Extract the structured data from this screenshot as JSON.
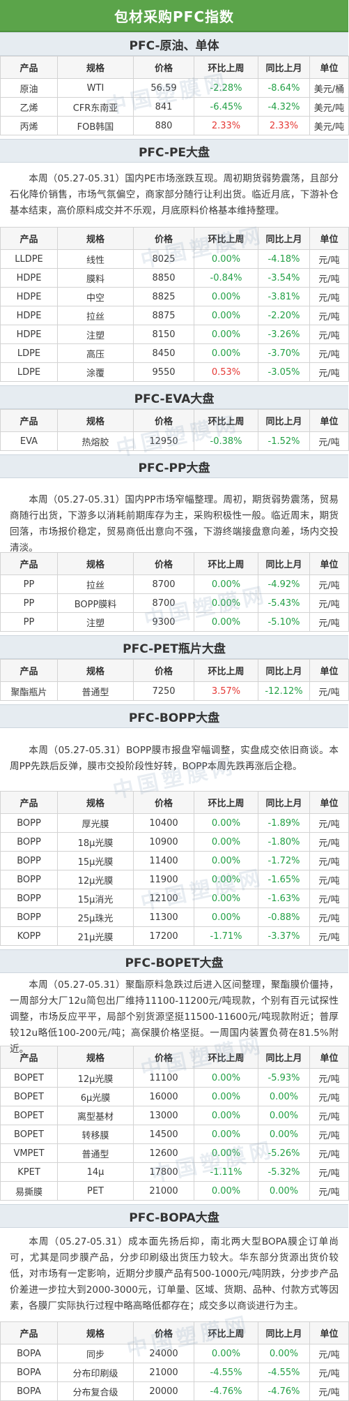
{
  "header": {
    "title": "包材采购PFC指数"
  },
  "watermark": "中国塑膜网",
  "colors": {
    "banner": "#5ba44a",
    "section_band": "#e6ecf1",
    "rise": "#e53935",
    "fall": "#22a045"
  },
  "columns": [
    "产品",
    "规格",
    "价格",
    "环比上周",
    "同比上月",
    "单位"
  ],
  "sections": [
    {
      "title": "PFC-原油、单体",
      "rows": [
        {
          "product": "原油",
          "spec": "WTI",
          "price": "56.59",
          "wow": "-2.28%",
          "mom": "-8.64%",
          "unit": "美元/桶"
        },
        {
          "product": "乙烯",
          "spec": "CFR东南亚",
          "price": "841",
          "wow": "-6.45%",
          "mom": "-4.32%",
          "unit": "美元/吨"
        },
        {
          "product": "丙烯",
          "spec": "FOB韩国",
          "price": "880",
          "wow": "2.33%",
          "mom": "2.33%",
          "unit": "美元/吨"
        }
      ]
    },
    {
      "title": "PFC-PE大盘",
      "summary": "本周（05.27-05.31）国内PE市场涨跌互现。周初期货弱势震荡，且部分石化降价销售，市场气氛偏空，商家部分随行让利出货。临近月底，下游补仓基本结束，高价原料成交并不乐观，月底原料价格基本维持整理。",
      "rows": [
        {
          "product": "LLDPE",
          "spec": "线性",
          "price": "8025",
          "wow": "0.00%",
          "mom": "-4.18%",
          "unit": "元/吨"
        },
        {
          "product": "HDPE",
          "spec": "膜料",
          "price": "8850",
          "wow": "-0.84%",
          "mom": "-3.54%",
          "unit": "元/吨"
        },
        {
          "product": "HDPE",
          "spec": "中空",
          "price": "8825",
          "wow": "0.00%",
          "mom": "-3.81%",
          "unit": "元/吨"
        },
        {
          "product": "HDPE",
          "spec": "拉丝",
          "price": "8875",
          "wow": "0.00%",
          "mom": "-2.20%",
          "unit": "元/吨"
        },
        {
          "product": "HDPE",
          "spec": "注塑",
          "price": "8150",
          "wow": "0.00%",
          "mom": "-3.26%",
          "unit": "元/吨"
        },
        {
          "product": "LDPE",
          "spec": "高压",
          "price": "8450",
          "wow": "0.00%",
          "mom": "-3.70%",
          "unit": "元/吨"
        },
        {
          "product": "LDPE",
          "spec": "涂覆",
          "price": "9550",
          "wow": "0.53%",
          "mom": "-3.05%",
          "unit": "元/吨"
        }
      ]
    },
    {
      "title": "PFC-EVA大盘",
      "rows": [
        {
          "product": "EVA",
          "spec": "热熔胶",
          "price": "12950",
          "wow": "-0.38%",
          "mom": "-1.52%",
          "unit": "元/吨"
        }
      ]
    },
    {
      "title": "PFC-PP大盘",
      "summary": "本周（05.27-05.31）国内PP市场窄幅整理。周初，期货弱势震荡，贸易商随行出货，下游多以消耗前期库存为主，采购积极性一般。临近周末，期货回落，市场报价稳定，贸易商低出意向不强，下游终端接盘意向差，场内交投清淡。",
      "rows": [
        {
          "product": "PP",
          "spec": "拉丝",
          "price": "8700",
          "wow": "0.00%",
          "mom": "-4.92%",
          "unit": "元/吨"
        },
        {
          "product": "PP",
          "spec": "BOPP膜料",
          "price": "8700",
          "wow": "0.00%",
          "mom": "-5.43%",
          "unit": "元/吨"
        },
        {
          "product": "PP",
          "spec": "注塑",
          "price": "9300",
          "wow": "0.00%",
          "mom": "-5.10%",
          "unit": "元/吨"
        }
      ]
    },
    {
      "title": "PFC-PET瓶片大盘",
      "rows": [
        {
          "product": "聚酯瓶片",
          "spec": "普通型",
          "price": "7250",
          "wow": "3.57%",
          "mom": "-12.12%",
          "unit": "元/吨"
        }
      ]
    },
    {
      "title": "PFC-BOPP大盘",
      "summary": "本周（05.27-05.31）BOPP膜市报盘窄幅调整，实盘成交依旧商谈。本周PP先跌后反弹，膜市交投阶段性好转，BOPP本周先跌再涨后企稳。",
      "rows": [
        {
          "product": "BOPP",
          "spec": "厚光膜",
          "price": "10400",
          "wow": "0.00%",
          "mom": "-1.89%",
          "unit": "元/吨"
        },
        {
          "product": "BOPP",
          "spec": "18μ光膜",
          "price": "10900",
          "wow": "0.00%",
          "mom": "-1.80%",
          "unit": "元/吨"
        },
        {
          "product": "BOPP",
          "spec": "15μ光膜",
          "price": "11400",
          "wow": "0.00%",
          "mom": "-1.72%",
          "unit": "元/吨"
        },
        {
          "product": "BOPP",
          "spec": "12μ光膜",
          "price": "11900",
          "wow": "0.00%",
          "mom": "-1.65%",
          "unit": "元/吨"
        },
        {
          "product": "BOPP",
          "spec": "15μ消光",
          "price": "12100",
          "wow": "0.00%",
          "mom": "-1.63%",
          "unit": "元/吨"
        },
        {
          "product": "BOPP",
          "spec": "25μ珠光",
          "price": "11300",
          "wow": "0.00%",
          "mom": "-0.88%",
          "unit": "元/吨"
        },
        {
          "product": "KOPP",
          "spec": "21μ光膜",
          "price": "17200",
          "wow": "-1.71%",
          "mom": "-3.37%",
          "unit": "元/吨"
        }
      ]
    },
    {
      "title": "PFC-BOPET大盘",
      "summary": "本周（05.27-05.31）聚酯原料急跌过后进入区间整理，聚酯膜价僵持，一周部分大厂12u简包出厂维持11100-11200元/吨现款，个别有百元试探性调整，市场反应平平，局部个别货源坚挺11500-11600元/吨现款附近；普厚较12u略低100-200元/吨；高保膜价格坚挺。一周国内装置负荷在81.5%附近。",
      "rows": [
        {
          "product": "BOPET",
          "spec": "12μ光膜",
          "price": "11100",
          "wow": "0.00%",
          "mom": "-5.93%",
          "unit": "元/吨"
        },
        {
          "product": "BOPET",
          "spec": "6μ光膜",
          "price": "16000",
          "wow": "0.00%",
          "mom": "0.00%",
          "unit": "元/吨"
        },
        {
          "product": "BOPET",
          "spec": "离型基材",
          "price": "13000",
          "wow": "0.00%",
          "mom": "0.00%",
          "unit": "元/吨"
        },
        {
          "product": "BOPET",
          "spec": "转移膜",
          "price": "14500",
          "wow": "0.00%",
          "mom": "0.00%",
          "unit": "元/吨"
        },
        {
          "product": "VMPET",
          "spec": "普通型",
          "price": "12600",
          "wow": "0.00%",
          "mom": "-5.26%",
          "unit": "元/吨"
        },
        {
          "product": "KPET",
          "spec": "14μ",
          "price": "17800",
          "wow": "-1.11%",
          "mom": "-5.32%",
          "unit": "元/吨"
        },
        {
          "product": "易撕膜",
          "spec": "PET",
          "price": "21000",
          "wow": "0.00%",
          "mom": "0.00%",
          "unit": "元/吨"
        }
      ]
    },
    {
      "title": "PFC-BOPA大盘",
      "summary": "本周（05.27-05.31）成本面先扬后抑，南北两大型BOPA膜企订单尚可，尤其是同步膜产品，分步印刷级出货压力较大。华东部分货源出货价较低，对市场有一定影响，近期分步膜产品有500-1000元/吨阴跌，分步步产品价差进一步拉大到2000-3000元，订单量、区域、货期、品种、付款方式等因素，各膜厂实际执行过程中略高略低都存在；成交多以商谈进行为主。",
      "rows": [
        {
          "product": "BOPA",
          "spec": "同步",
          "price": "24000",
          "wow": "0.00%",
          "mom": "0.00%",
          "unit": "元/吨"
        },
        {
          "product": "BOPA",
          "spec": "分布印刷级",
          "price": "21000",
          "wow": "-4.55%",
          "mom": "-4.55%",
          "unit": "元/吨"
        },
        {
          "product": "BOPA",
          "spec": "分布复合级",
          "price": "20000",
          "wow": "-4.76%",
          "mom": "-4.76%",
          "unit": "元/吨"
        }
      ]
    }
  ]
}
